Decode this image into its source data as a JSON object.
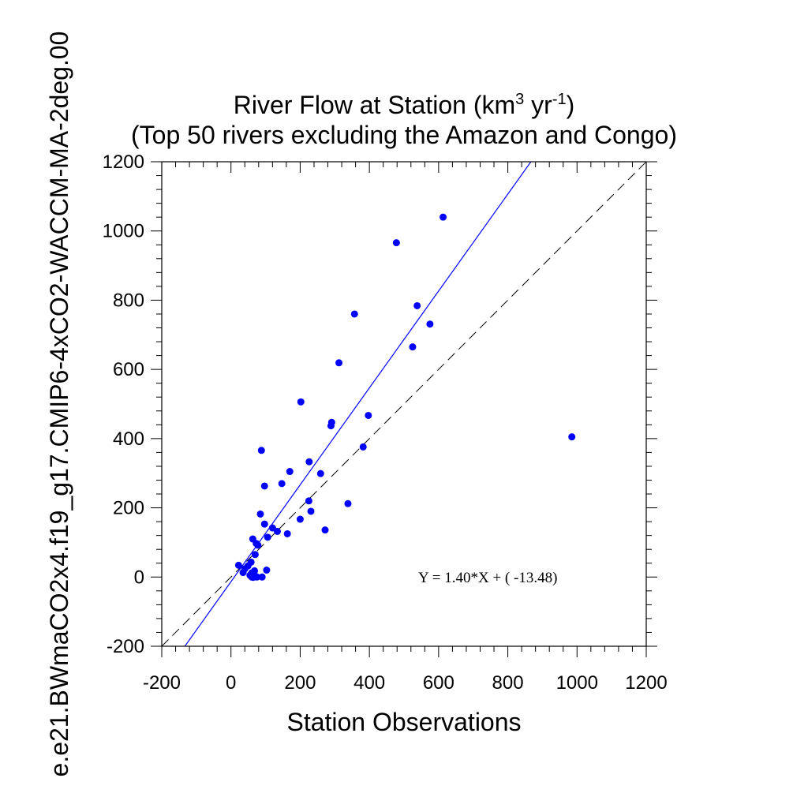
{
  "chart_data": {
    "type": "scatter",
    "title_main": "River Flow at Station (km",
    "title_sup1": "3",
    "title_mid": " yr",
    "title_sup2": "-1",
    "title_end": ")",
    "subtitle": "(Top 50 rivers excluding the Amazon and Congo)",
    "xlabel": "Station Observations",
    "ylabel": "e.e21.BWmaCO2x4.f19_g17.CMIP6-4xCO2-WACCM-MA-2deg.00",
    "xlim": [
      -200,
      1200
    ],
    "ylim": [
      -200,
      1200
    ],
    "x_ticks": [
      -200,
      0,
      200,
      400,
      600,
      800,
      1000,
      1200
    ],
    "y_ticks": [
      -200,
      0,
      200,
      400,
      600,
      800,
      1000,
      1200
    ],
    "x_tick_labels": [
      "-200",
      "0",
      "200",
      "400",
      "600",
      "800",
      "1000",
      "1200"
    ],
    "y_tick_labels": [
      "-200",
      "0",
      "200",
      "400",
      "600",
      "800",
      "1000",
      "1200"
    ],
    "regression": {
      "slope": 1.4,
      "intercept": -13.48,
      "label": "Y =  1.40*X + (  -13.48)"
    },
    "colors": {
      "points": "#0000ff",
      "fit_line": "#0000ff",
      "one_to_one": "#000000"
    },
    "points": [
      [
        613,
        1040
      ],
      [
        478,
        966
      ],
      [
        538,
        784
      ],
      [
        357,
        760
      ],
      [
        575,
        731
      ],
      [
        525,
        665
      ],
      [
        312,
        619
      ],
      [
        202,
        506
      ],
      [
        397,
        467
      ],
      [
        291,
        447
      ],
      [
        289,
        437
      ],
      [
        985,
        405
      ],
      [
        382,
        376
      ],
      [
        88,
        366
      ],
      [
        226,
        333
      ],
      [
        170,
        305
      ],
      [
        259,
        299
      ],
      [
        147,
        270
      ],
      [
        97,
        263
      ],
      [
        225,
        220
      ],
      [
        338,
        212
      ],
      [
        231,
        190
      ],
      [
        85,
        182
      ],
      [
        200,
        167
      ],
      [
        97,
        153
      ],
      [
        272,
        136
      ],
      [
        120,
        142
      ],
      [
        134,
        132
      ],
      [
        163,
        125
      ],
      [
        106,
        115
      ],
      [
        63,
        110
      ],
      [
        73,
        97
      ],
      [
        78,
        92
      ],
      [
        70,
        65
      ],
      [
        58,
        43
      ],
      [
        49,
        32
      ],
      [
        22,
        34
      ],
      [
        40,
        24
      ],
      [
        68,
        18
      ],
      [
        35,
        13
      ],
      [
        60,
        12
      ],
      [
        103,
        20
      ],
      [
        55,
        5
      ],
      [
        65,
        2
      ],
      [
        71,
        1
      ],
      [
        90,
        0
      ],
      [
        60,
        0
      ],
      [
        67,
        8
      ],
      [
        64,
        -1
      ],
      [
        75,
        0
      ]
    ]
  }
}
